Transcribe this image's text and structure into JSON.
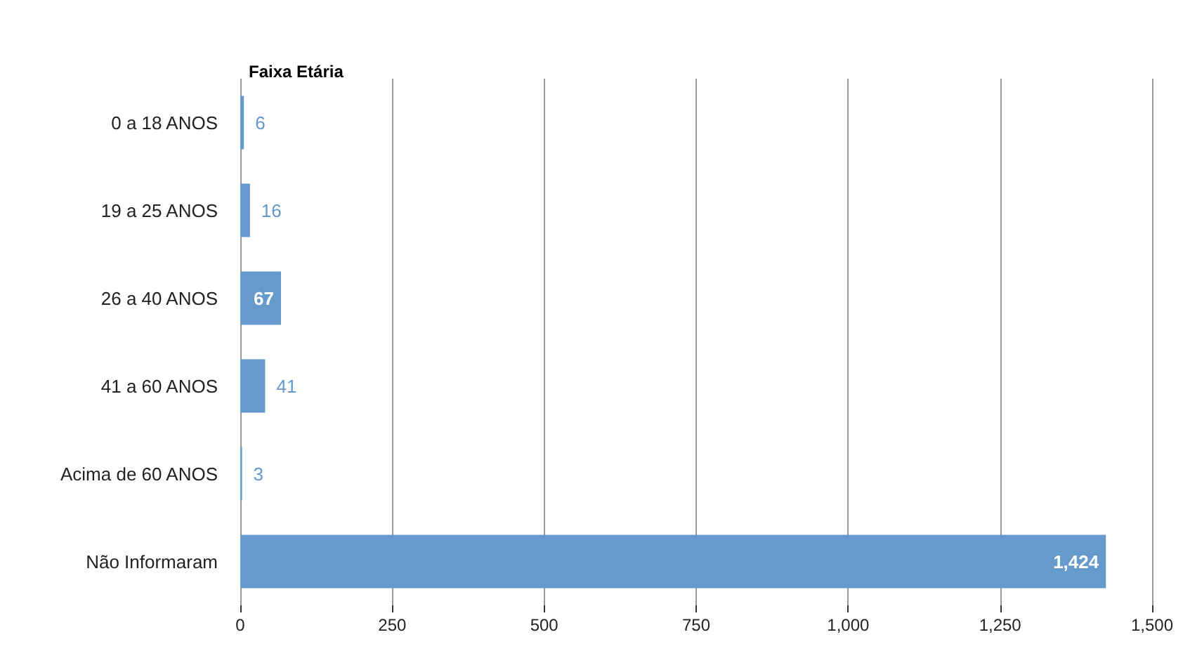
{
  "chart_data": {
    "type": "bar",
    "orientation": "horizontal",
    "title": "Faixa Etária",
    "categories": [
      "0 a 18 ANOS",
      "19 a 25 ANOS",
      "26 a 40 ANOS",
      "41 a 60 ANOS",
      "Acima de 60 ANOS",
      "Não Informaram"
    ],
    "values": [
      6,
      16,
      67,
      41,
      3,
      1424
    ],
    "value_labels": [
      "6",
      "16",
      "67",
      "41",
      "3",
      "1,424"
    ],
    "color": "#6699cc",
    "xlim": [
      0,
      1500
    ],
    "xticks": [
      0,
      250,
      500,
      750,
      {
        "value": 1000,
        "label": "1,000"
      },
      {
        "value": 1250,
        "label": "1,250"
      },
      {
        "value": 1500,
        "label": "1,500"
      }
    ],
    "grid": "x"
  }
}
